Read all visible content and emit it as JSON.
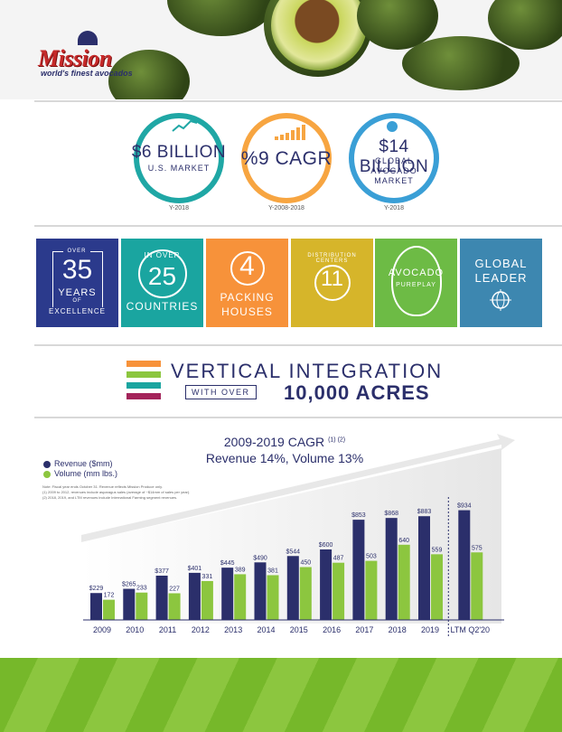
{
  "brand": {
    "name": "Mission",
    "tagline": "world's finest avocados"
  },
  "stats": [
    {
      "big": "$6 BILLION",
      "small": [
        "U.S. MARKET"
      ],
      "caption": "Y-2018",
      "color": "#1fa7a5"
    },
    {
      "big": "%9 CAGR",
      "small": [],
      "caption": "Y-2008-2018",
      "color": "#f7a541"
    },
    {
      "big": "$14 BILLION",
      "small": [
        "GLOBAL",
        "AVOCADO",
        "MARKET"
      ],
      "caption": "Y-2018",
      "color": "#3a9fd6"
    }
  ],
  "tiles": [
    {
      "over": "OVER",
      "num": "35",
      "l1": "YEARS",
      "of": "OF",
      "l2": "EXCELLENCE",
      "color": "#2b3a8c"
    },
    {
      "over": "IN OVER",
      "num": "25",
      "l1": "COUNTRIES",
      "color": "#1aa5a0"
    },
    {
      "num": "4",
      "l1": "PACKING",
      "l2": "HOUSES",
      "color": "#f7923a"
    },
    {
      "num": "11",
      "l1": "DISTRIBUTION CENTERS",
      "color": "#d6b52a"
    },
    {
      "l1": "AVOCADO",
      "l2": "PUREPLAY",
      "color": "#6dbb45"
    },
    {
      "l1": "GLOBAL",
      "l2": "LEADER",
      "color": "#3d87b0"
    }
  ],
  "vi": {
    "title": "VERTICAL INTEGRATION",
    "box": "WITH OVER",
    "acres": "10,000 ACRES",
    "strips": [
      "#f7923a",
      "#8cc63f",
      "#1aa5a0",
      "#a3245a"
    ]
  },
  "chart_data": {
    "type": "bar",
    "title": "2009-2019 CAGR",
    "title_sup": "(1) (2)",
    "subtitle": "Revenue 14%, Volume 13%",
    "categories": [
      "2009",
      "2010",
      "2011",
      "2012",
      "2013",
      "2014",
      "2015",
      "2016",
      "2017",
      "2018",
      "2019",
      "LTM Q2'20"
    ],
    "series": [
      {
        "name": "Revenue ($mm)",
        "color": "#2b2f6b",
        "values": [
          229,
          265,
          377,
          401,
          445,
          490,
          544,
          600,
          853,
          868,
          883,
          934
        ],
        "labels": [
          "$229",
          "$265",
          "$377",
          "$401",
          "$445",
          "$490",
          "$544",
          "$600",
          "$853",
          "$868",
          "$883",
          "$934"
        ]
      },
      {
        "name": "Volume (mm lbs.)",
        "color": "#8cc63f",
        "values": [
          172,
          233,
          227,
          331,
          389,
          381,
          450,
          487,
          503,
          640,
          559,
          575
        ],
        "labels": [
          "172",
          "233",
          "227",
          "331",
          "389",
          "381",
          "450",
          "487",
          "503",
          "640",
          "559",
          "575"
        ]
      }
    ],
    "ylim": [
      0,
      1000
    ],
    "notes": [
      "Note: Fiscal year ends October 31. Revenue reflects Mission Produce only.",
      "(1) 2009 to 2012, revenues include asparagus sales (average of ~$14mm of sales per year).",
      "(2) 2018, 2019, and LTM revenues include International Farming segment revenues."
    ]
  }
}
